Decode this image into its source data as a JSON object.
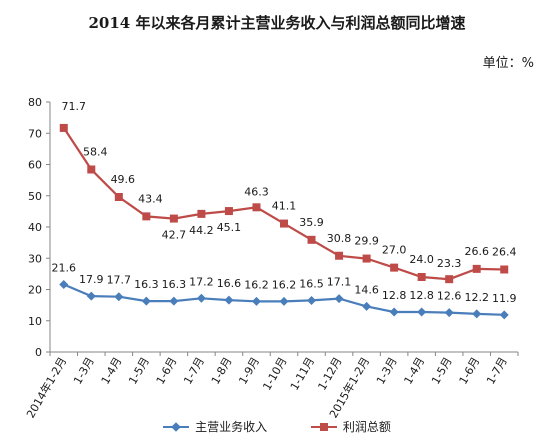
{
  "chart_data": {
    "type": "line",
    "title": "2014 年以来各月累计主营业务收入与利润总额同比增速",
    "unit_label": "单位：%",
    "categories": [
      "2014年1-2月",
      "1-3月",
      "1-4月",
      "1-5月",
      "1-6月",
      "1-7月",
      "1-8月",
      "1-9月",
      "1-10月",
      "1-11月",
      "1-12月",
      "2015年1-2月",
      "1-3月",
      "1-4月",
      "1-5月",
      "1-6月",
      "1-7月"
    ],
    "ylim": [
      0,
      80
    ],
    "yticks": [
      0,
      10,
      20,
      30,
      40,
      50,
      60,
      70,
      80
    ],
    "grid": false,
    "legend": "bottom",
    "series": [
      {
        "name": "主营业务收入",
        "color": "#4a7ebb",
        "marker": "diamond",
        "values": [
          21.6,
          17.9,
          17.7,
          16.3,
          16.3,
          17.2,
          16.6,
          16.2,
          16.2,
          16.5,
          17.1,
          14.6,
          12.8,
          12.8,
          12.6,
          12.2,
          11.9
        ]
      },
      {
        "name": "利润总额",
        "color": "#be4b48",
        "marker": "square",
        "values": [
          71.7,
          58.4,
          49.6,
          43.4,
          42.7,
          44.2,
          45.1,
          46.3,
          41.1,
          35.9,
          30.8,
          29.9,
          27.0,
          24.0,
          23.3,
          26.6,
          26.4
        ]
      }
    ]
  }
}
